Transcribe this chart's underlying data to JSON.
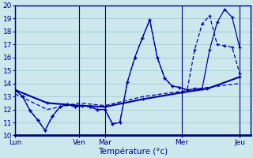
{
  "xlabel": "Température (°c)",
  "ylim": [
    10,
    20
  ],
  "yticks": [
    10,
    11,
    12,
    13,
    14,
    15,
    16,
    17,
    18,
    19,
    20
  ],
  "background_color": "#cce8ec",
  "grid_color": "#9ecdd4",
  "line_color": "#0000aa",
  "day_labels": [
    "Lun",
    "Ven",
    "Mar",
    "Mer",
    "Jeu"
  ],
  "day_positions": [
    0,
    60,
    84,
    156,
    210
  ],
  "xlim": [
    0,
    220
  ],
  "series_zigzag1": {
    "x": [
      0,
      7,
      14,
      21,
      28,
      35,
      42,
      49,
      56,
      63,
      70,
      77,
      84,
      91,
      98,
      105,
      112,
      119,
      126,
      133,
      140,
      147,
      154,
      161,
      168,
      175,
      182,
      189,
      196,
      203,
      210
    ],
    "y": [
      13.5,
      13.0,
      11.9,
      11.2,
      10.4,
      11.5,
      12.2,
      12.4,
      12.2,
      12.3,
      12.2,
      12.0,
      12.0,
      10.9,
      11.0,
      14.1,
      16.0,
      17.5,
      18.9,
      16.0,
      14.4,
      13.8,
      13.7,
      13.5,
      13.6,
      13.6,
      16.6,
      18.7,
      19.7,
      19.1,
      16.8
    ]
  },
  "series_zigzag2": {
    "x": [
      0,
      7,
      14,
      21,
      28,
      35,
      42,
      49,
      56,
      63,
      70,
      77,
      84,
      91,
      98,
      105,
      112,
      119,
      126,
      133,
      140,
      147,
      154,
      161,
      168,
      175,
      182,
      189,
      196,
      203,
      210
    ],
    "y": [
      13.5,
      13.0,
      11.9,
      11.2,
      10.4,
      11.5,
      12.2,
      12.4,
      12.2,
      12.3,
      12.2,
      12.0,
      12.0,
      10.9,
      11.0,
      14.1,
      16.0,
      17.5,
      18.9,
      16.0,
      14.4,
      13.8,
      13.7,
      13.5,
      16.6,
      18.6,
      19.2,
      17.0,
      16.9,
      16.8,
      14.8
    ]
  },
  "series_trend1": {
    "x": [
      0,
      30,
      60,
      84,
      120,
      156,
      180,
      210
    ],
    "y": [
      13.5,
      12.5,
      12.3,
      12.2,
      12.8,
      13.3,
      13.6,
      14.5
    ]
  },
  "series_trend2": {
    "x": [
      0,
      30,
      60,
      84,
      120,
      156,
      180,
      210
    ],
    "y": [
      13.2,
      12.0,
      12.5,
      12.3,
      13.0,
      13.4,
      13.7,
      14.0
    ]
  }
}
